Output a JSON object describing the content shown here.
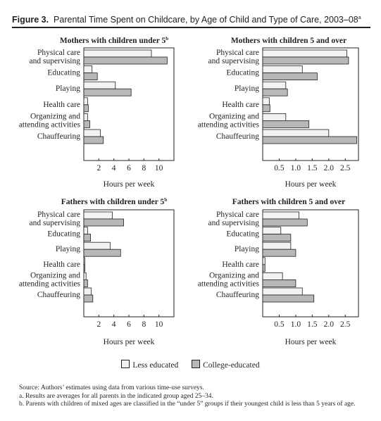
{
  "figure": {
    "label": "Figure 3.",
    "title": "Parental Time Spent on Childcare, by Age of Child and Type of Care, 2003–08",
    "title_marker": "a"
  },
  "colors": {
    "less_educated": "#f2f2f2",
    "college_educated": "#b8b8b8",
    "axis": "#231f20"
  },
  "legend": {
    "items": [
      {
        "label": "Less educated",
        "color": "#f2f2f2"
      },
      {
        "label": "College-educated",
        "color": "#b8b8b8"
      }
    ]
  },
  "notes": {
    "source": "Source:  Authors’ estimates using data from various time-use surveys.",
    "a": "a. Results are averages for all parents in the indicated group aged 25–34.",
    "b": "b. Parents with children of mixed ages are classified in the “under 5” groups if their youngest child is less than 5 years of age."
  },
  "chart_data": [
    {
      "type": "bar",
      "orientation": "horizontal",
      "title": "Mothers with children under 5",
      "title_marker": "b",
      "xlabel": "Hours per week",
      "xlim": [
        0,
        12
      ],
      "xticks": [
        "2",
        "4",
        "6",
        "8",
        "10"
      ],
      "xtick_values": [
        2,
        4,
        6,
        8,
        10
      ],
      "categories": [
        "Physical care|and supervising",
        "Educating",
        "Playing",
        "Health care",
        "Organizing and|attending activities",
        "Chauffeuring"
      ],
      "series": [
        {
          "name": "Less educated",
          "values": [
            9.0,
            1.1,
            4.2,
            0.5,
            0.5,
            2.2
          ]
        },
        {
          "name": "College-educated",
          "values": [
            11.1,
            1.8,
            6.3,
            0.6,
            0.8,
            2.6
          ]
        }
      ]
    },
    {
      "type": "bar",
      "orientation": "horizontal",
      "title": "Mothers with children 5 and over",
      "title_marker": "",
      "xlabel": "Hours per week",
      "xlim": [
        0,
        2.9
      ],
      "xticks": [
        "0.5",
        "1.0",
        "1.5",
        "2.0",
        "2.5"
      ],
      "xtick_values": [
        0.5,
        1.0,
        1.5,
        2.0,
        2.5
      ],
      "categories": [
        "Physical care|and supervising",
        "Educating",
        "Playing",
        "Health care",
        "Organizing and|attending activities",
        "Chauffeuring"
      ],
      "series": [
        {
          "name": "Less educated",
          "values": [
            2.55,
            1.2,
            0.7,
            0.2,
            0.7,
            2.0
          ]
        },
        {
          "name": "College-educated",
          "values": [
            2.6,
            1.65,
            0.75,
            0.22,
            1.4,
            2.85
          ]
        }
      ]
    },
    {
      "type": "bar",
      "orientation": "horizontal",
      "title": "Fathers with children under 5",
      "title_marker": "b",
      "xlabel": "Hours per week",
      "xlim": [
        0,
        12
      ],
      "xticks": [
        "2",
        "4",
        "6",
        "8",
        "10"
      ],
      "xtick_values": [
        2,
        4,
        6,
        8,
        10
      ],
      "categories": [
        "Physical care|and supervising",
        "Educating",
        "Playing",
        "Health care",
        "Organizing and|attending activities",
        "Chauffeuring"
      ],
      "series": [
        {
          "name": "Less educated",
          "values": [
            3.8,
            0.5,
            3.5,
            0.1,
            0.3,
            1.0
          ]
        },
        {
          "name": "College-educated",
          "values": [
            5.3,
            0.9,
            4.9,
            0.15,
            0.5,
            1.2
          ]
        }
      ]
    },
    {
      "type": "bar",
      "orientation": "horizontal",
      "title": "Fathers with children 5 and over",
      "title_marker": "",
      "xlabel": "Hours per week",
      "xlim": [
        0,
        2.9
      ],
      "xticks": [
        "0.5",
        "1.0",
        "1.5",
        "2.0",
        "2.5"
      ],
      "xtick_values": [
        0.5,
        1.0,
        1.5,
        2.0,
        2.5
      ],
      "categories": [
        "Physical care|and supervising",
        "Educating",
        "Playing",
        "Health care",
        "Organizing and|attending activities",
        "Chauffeuring"
      ],
      "series": [
        {
          "name": "Less educated",
          "values": [
            1.1,
            0.55,
            0.85,
            0.07,
            0.6,
            1.2
          ]
        },
        {
          "name": "College-educated",
          "values": [
            1.35,
            0.85,
            1.0,
            0.07,
            1.0,
            1.55
          ]
        }
      ]
    }
  ]
}
